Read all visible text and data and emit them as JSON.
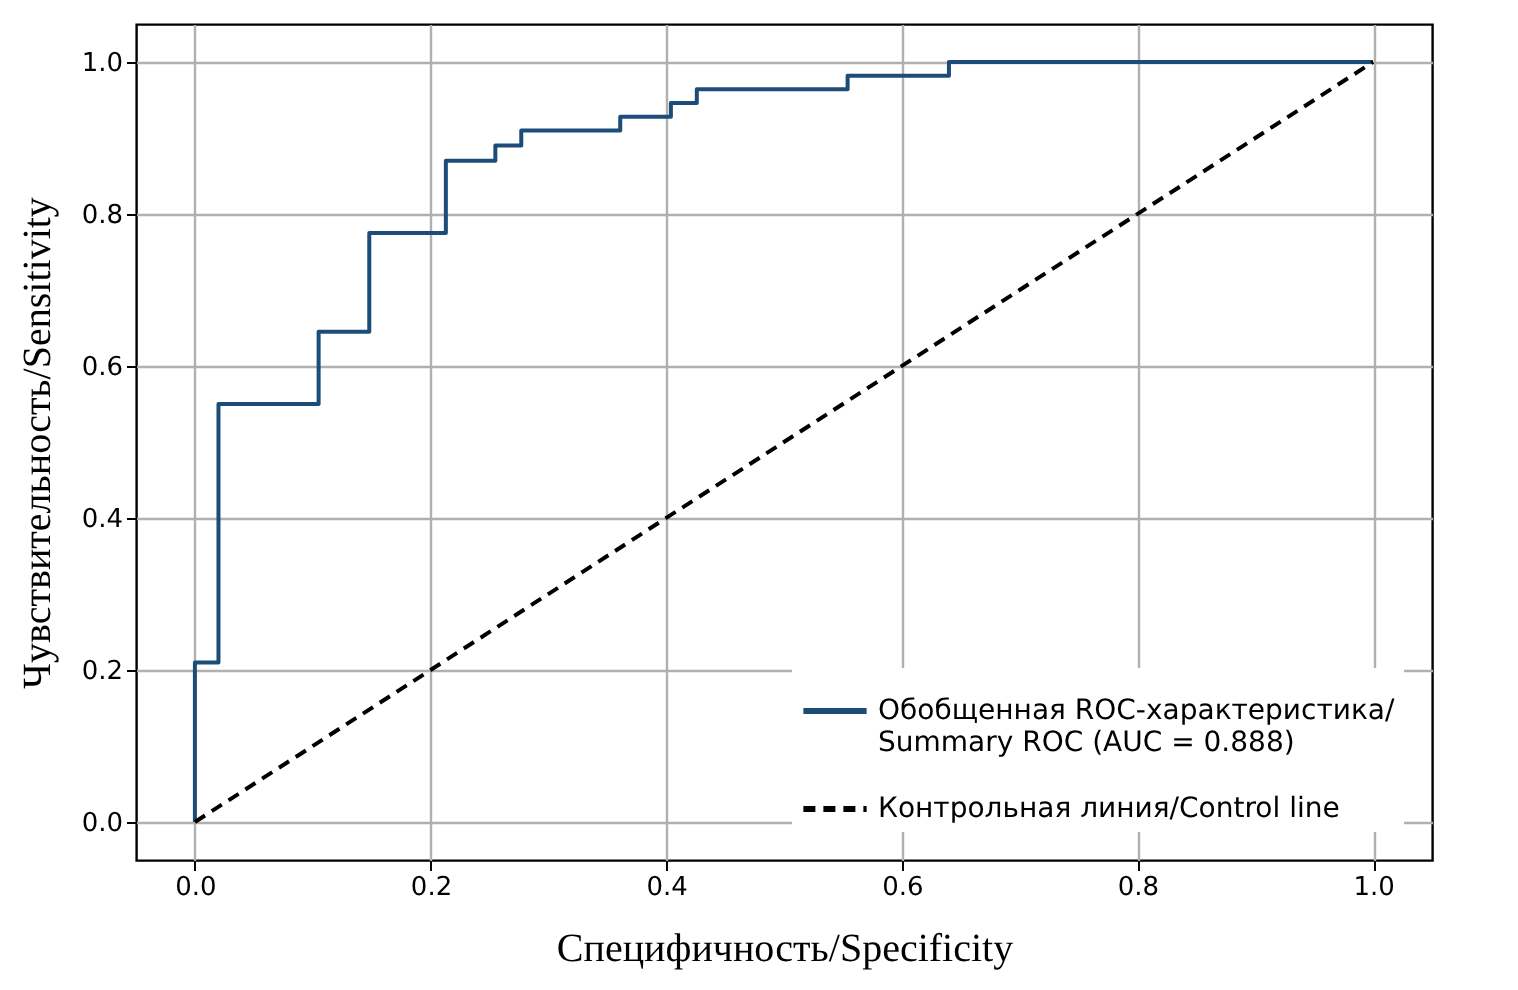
{
  "chart_data": {
    "type": "line",
    "xlabel": "Специфичность/Specificity",
    "ylabel": "Чувствительность/Sensitivity",
    "series": [
      {
        "name": "Обобщенная ROC-характеристика/\nSummary ROC (AUC = 0.888)",
        "type": "step",
        "color": "#1c4d78",
        "line_style": "solid",
        "x": [
          0,
          0,
          0.02,
          0.105,
          0.148,
          0.213,
          0.255,
          0.277,
          0.361,
          0.404,
          0.426,
          0.554,
          0.64,
          1
        ],
        "values": [
          0,
          0.21,
          0.55,
          0.645,
          0.775,
          0.87,
          0.89,
          0.91,
          0.928,
          0.946,
          0.964,
          0.982,
          1,
          1
        ]
      },
      {
        "name": "Контрольная линия/Control line",
        "type": "line",
        "color": "#000000",
        "line_style": "dashed",
        "x": [
          0,
          1
        ],
        "values": [
          0,
          1
        ]
      }
    ],
    "xlim": [
      -0.05,
      1.05
    ],
    "ylim": [
      -0.05,
      1.05
    ],
    "xticks": [
      {
        "value": 0,
        "label": "0.0"
      },
      0.2,
      0.4,
      0.6,
      0.8,
      {
        "value": 1,
        "label": "1.0"
      }
    ],
    "yticks": [
      {
        "value": 0,
        "label": "0.0"
      },
      0.2,
      0.4,
      0.6,
      0.8,
      {
        "value": 1,
        "label": "1.0"
      }
    ],
    "grid": true,
    "legend": "bottom right"
  }
}
